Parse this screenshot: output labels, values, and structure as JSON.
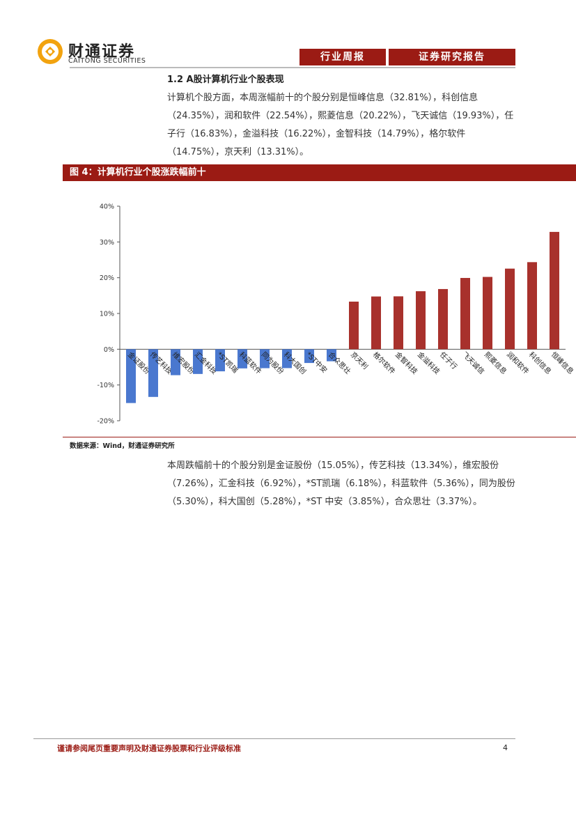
{
  "header": {
    "logo_cn": "财通证券",
    "logo_en": "CAITONG SECURITIES",
    "tag1": "行业周报",
    "tag2": "证券研究报告"
  },
  "section": {
    "title": "1.2  A股计算机行业个股表现",
    "paragraph1": "计算机个股方面，本周涨幅前十的个股分别是恒峰信息（32.81%），科创信息（24.35%），润和软件（22.54%），熙菱信息（20.22%），飞天诚信（19.93%），任子行（16.83%），金溢科技（16.22%），金智科技（14.79%），格尔软件（14.75%），京天利（13.31%）。",
    "paragraph2": "本周跌幅前十的个股分别是金证股份（15.05%），传艺科技（13.34%），维宏股份（7.26%），汇金科技（6.92%），*ST凯瑞（6.18%），科蓝软件（5.36%），同为股份（5.30%），科大国创（5.28%），*ST 中安（3.85%），合众思壮（3.37%）。"
  },
  "figure": {
    "title": "图 4：计算机行业个股涨跌幅前十",
    "source": "数据来源：Wind，财通证券研究所"
  },
  "chart_data": {
    "type": "bar",
    "categories": [
      "金证股份",
      "传艺科技",
      "维宏股份",
      "汇金科技",
      "*ST凯瑞",
      "科蓝软件",
      "同为股份",
      "科大国创",
      "*ST中安",
      "合众思壮",
      "京天利",
      "格尔软件",
      "金智科技",
      "金溢科技",
      "任子行",
      "飞天诚信",
      "熙菱信息",
      "润和软件",
      "科创信息",
      "恒峰信息"
    ],
    "values": [
      -15.05,
      -13.34,
      -7.26,
      -6.92,
      -6.18,
      -5.36,
      -5.3,
      -5.28,
      -3.85,
      -3.37,
      13.31,
      14.75,
      14.79,
      16.22,
      16.83,
      19.93,
      20.22,
      22.54,
      24.35,
      32.81
    ],
    "colors": {
      "negative": "#4a78cf",
      "positive": "#a8312c"
    },
    "ylim": [
      -20,
      40
    ],
    "yticks": [
      "40%",
      "30%",
      "20%",
      "10%",
      "0%",
      "-10%",
      "-20%"
    ],
    "ytick_values": [
      40,
      30,
      20,
      10,
      0,
      -10,
      -20
    ],
    "grid": false,
    "legend": "none"
  },
  "footer": {
    "disclaimer": "谨请参阅尾页重要声明及财通证券股票和行业评级标准",
    "page": "4"
  }
}
